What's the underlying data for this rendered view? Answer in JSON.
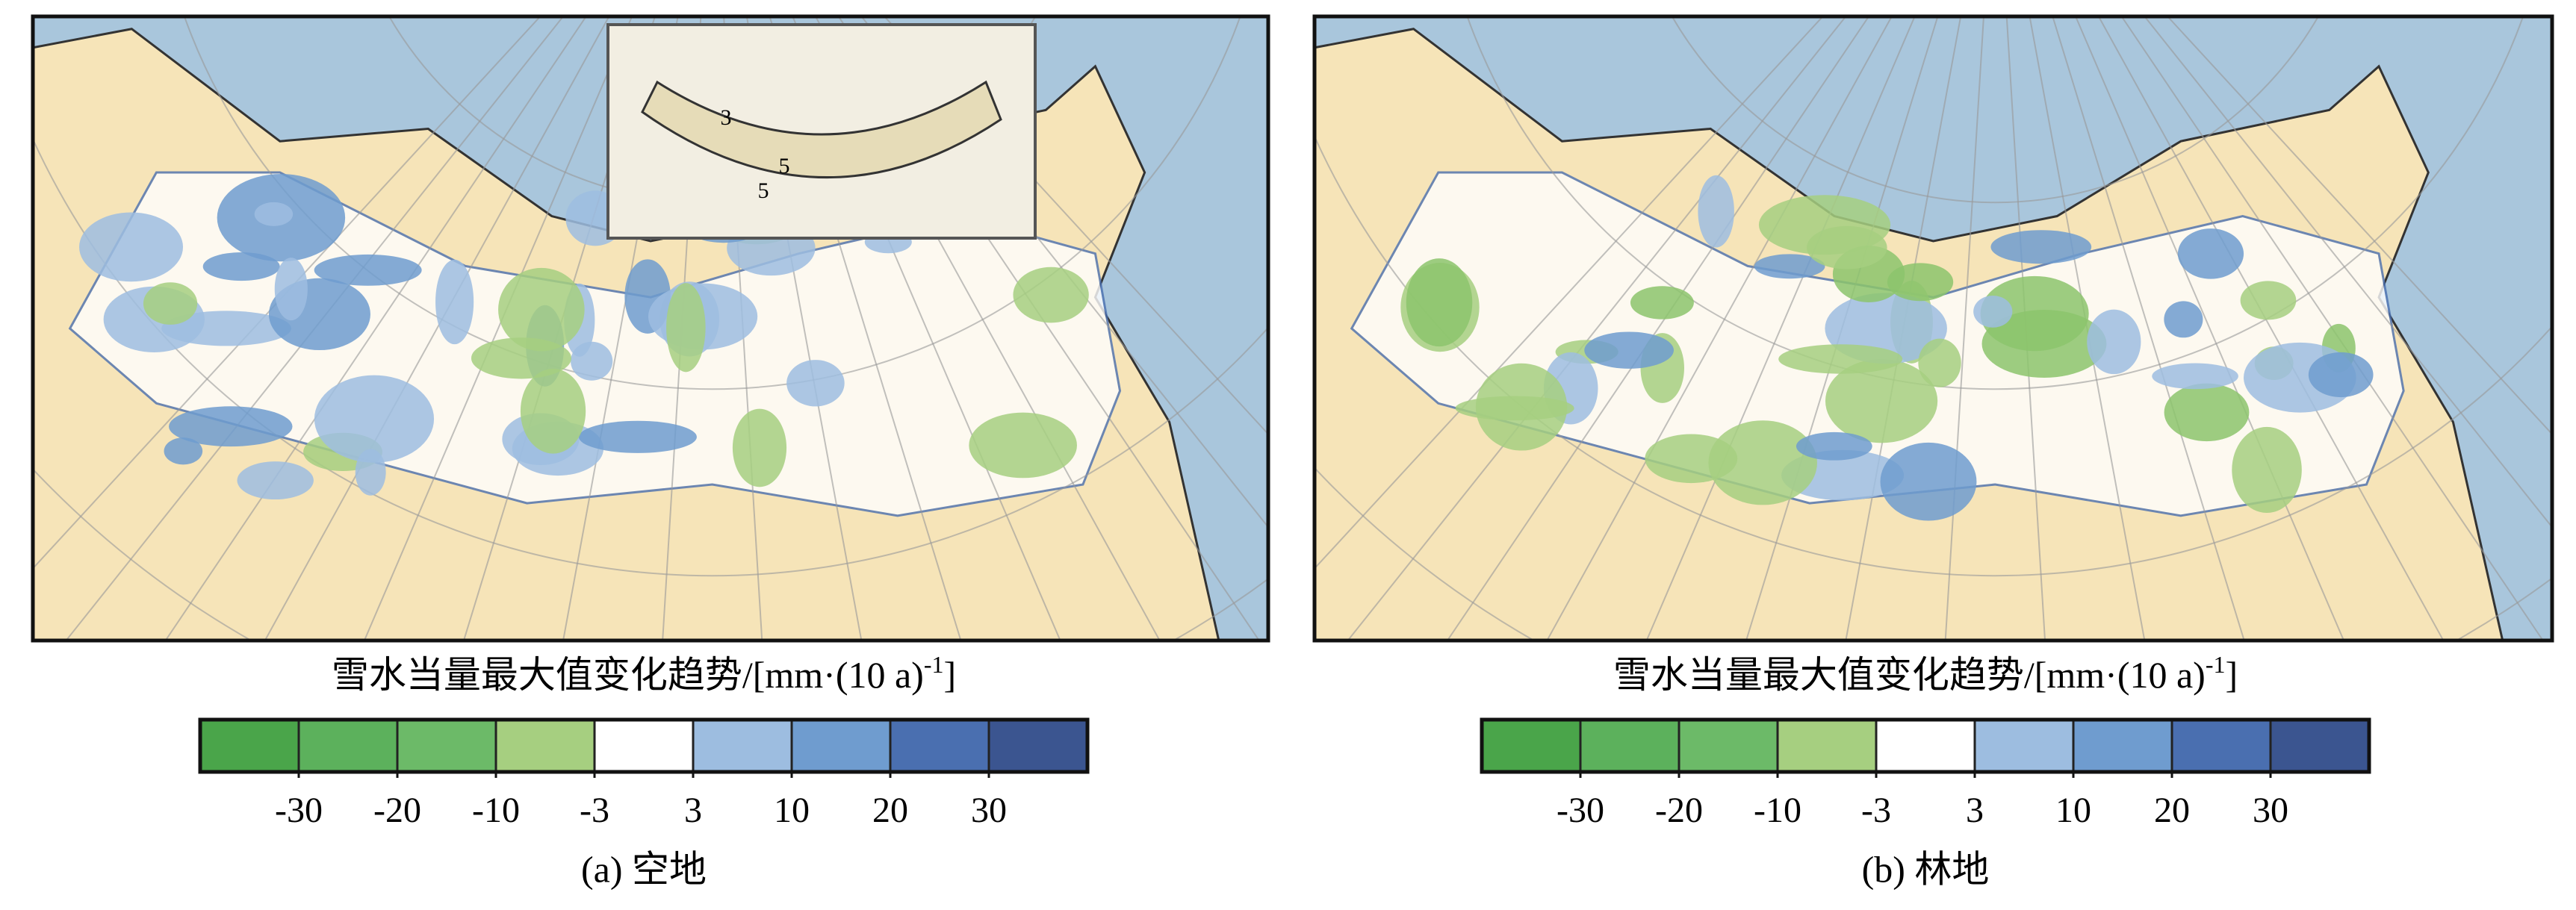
{
  "panels": [
    {
      "caption": "(a) 空地",
      "inset_labels": [
        "3",
        "5",
        "5"
      ],
      "legend": {
        "title": "雪水当量最大值变化趋势/[mm·(10 a)",
        "title_sup": "-1",
        "title_end": "]",
        "ticks": [
          -30,
          -20,
          -10,
          -3,
          3,
          10,
          20,
          30
        ],
        "colors": [
          "#4aa54a",
          "#5cb15c",
          "#6cba68",
          "#a6cf80",
          "#ffffff",
          "#9dbde0",
          "#6f9ccf",
          "#4a6fb0",
          "#3b5590"
        ]
      }
    },
    {
      "caption": "(b) 林地",
      "legend": {
        "title": "雪水当量最大值变化趋势/[mm·(10 a)",
        "title_sup": "-1",
        "title_end": "]",
        "ticks": [
          -30,
          -20,
          -10,
          -3,
          3,
          10,
          20,
          30
        ],
        "colors": [
          "#4aa54a",
          "#5cb15c",
          "#6cba68",
          "#a6cf80",
          "#ffffff",
          "#9dbde0",
          "#6f9ccf",
          "#4a6fb0",
          "#3b5590"
        ]
      }
    }
  ]
}
